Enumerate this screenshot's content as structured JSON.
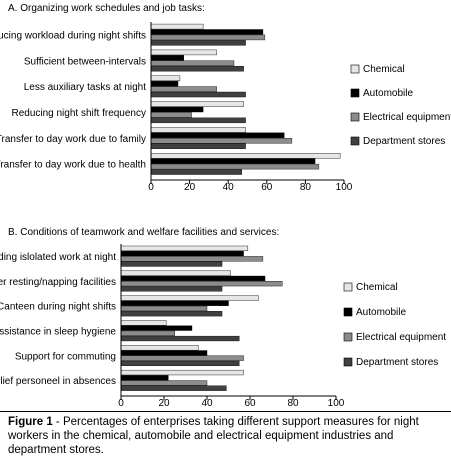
{
  "caption": {
    "label": "Figure 1",
    "text": " - Percentages of enterprises taking different support measures for night workers in the chemical, automobile and electrical equipment industries and department stores."
  },
  "colors": {
    "Chemical": "#e6e6e6",
    "Automobile": "#000000",
    "Electrical equipment": "#8c8c8c",
    "Department stores": "#404040"
  },
  "chart_data": [
    {
      "type": "bar",
      "orientation": "horizontal",
      "title": "A. Organizing work schedules and job tasks:",
      "categories": [
        "ducing workload during night shifts",
        "Sufficient between-intervals",
        "Less auxiliary tasks at night",
        "Reducing night shift frequency",
        "Transfer to day work due to family",
        "Transfer to day work due to health"
      ],
      "series": [
        {
          "name": "Chemical",
          "values": [
            27,
            34,
            15,
            48,
            49,
            98
          ]
        },
        {
          "name": "Automobile",
          "values": [
            58,
            17,
            14,
            27,
            69,
            85
          ]
        },
        {
          "name": "Electrical equipment",
          "values": [
            59,
            43,
            34,
            21,
            73,
            87
          ]
        },
        {
          "name": "Department stores",
          "values": [
            49,
            48,
            49,
            49,
            49,
            47
          ]
        }
      ],
      "xlim": [
        0,
        100
      ],
      "xticks": [
        "0",
        "20",
        "40",
        "60",
        "80",
        "100"
      ],
      "legend": [
        "Chemical",
        "Automobile",
        "Electrical equipment",
        "Department stores"
      ],
      "legend_position": "right"
    },
    {
      "type": "bar",
      "orientation": "horizontal",
      "title": "B. Conditions of teamwork and welfare facilities and services:",
      "categories": [
        "voiding islolated work at night",
        "etter resting/napping facilities",
        "Canteen during night shifts",
        "Assistance in sleep hygiene",
        "Support for commuting",
        "Relief personeel in absences"
      ],
      "series": [
        {
          "name": "Chemical",
          "values": [
            59,
            51,
            64,
            21,
            36,
            57
          ]
        },
        {
          "name": "Automobile",
          "values": [
            57,
            67,
            50,
            33,
            40,
            22
          ]
        },
        {
          "name": "Electrical equipment",
          "values": [
            66,
            75,
            40,
            25,
            57,
            40
          ]
        },
        {
          "name": "Department stores",
          "values": [
            47,
            47,
            47,
            55,
            55,
            49
          ]
        }
      ],
      "xlim": [
        0,
        100
      ],
      "xticks": [
        "0",
        "20",
        "40",
        "60",
        "80",
        "100"
      ],
      "legend": [
        "Chemical",
        "Automobile",
        "Electrical equipment",
        "Department stores"
      ],
      "legend_position": "right"
    }
  ]
}
